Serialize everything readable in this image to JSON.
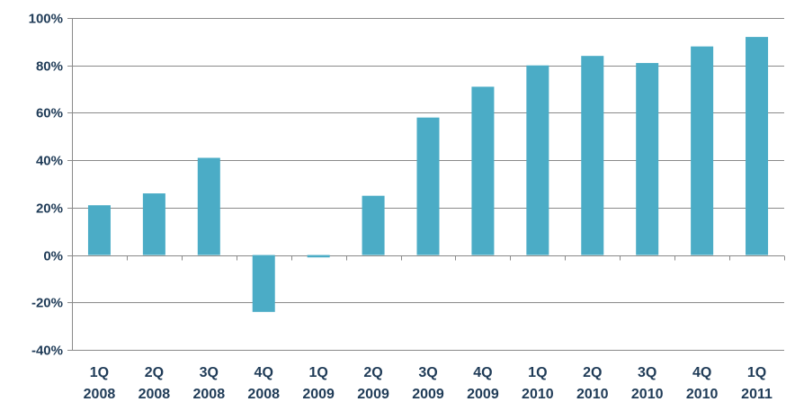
{
  "chart_data": {
    "type": "bar",
    "title": "",
    "xlabel": "",
    "ylabel": "",
    "ylim": [
      -40,
      100
    ],
    "y_ticks": [
      100,
      80,
      60,
      40,
      20,
      0,
      -20,
      -40
    ],
    "y_tick_labels": [
      "100%",
      "80%",
      "60%",
      "40%",
      "20%",
      "0%",
      "-20%",
      "-40%"
    ],
    "grid": true,
    "legend": "none",
    "categories": [
      [
        "1Q",
        "2008"
      ],
      [
        "2Q",
        "2008"
      ],
      [
        "3Q",
        "2008"
      ],
      [
        "4Q",
        "2008"
      ],
      [
        "1Q",
        "2009"
      ],
      [
        "2Q",
        "2009"
      ],
      [
        "3Q",
        "2009"
      ],
      [
        "4Q",
        "2009"
      ],
      [
        "1Q",
        "2010"
      ],
      [
        "2Q",
        "2010"
      ],
      [
        "3Q",
        "2010"
      ],
      [
        "4Q",
        "2010"
      ],
      [
        "1Q",
        "2011"
      ]
    ],
    "values": [
      21,
      26,
      41,
      -24,
      -1,
      25,
      58,
      71,
      80,
      84,
      81,
      88,
      92
    ],
    "colors": {
      "bar": "#4bacc6",
      "grid": "#8a8a8a",
      "axis": "#8a8a8a",
      "text": "#1f3b57"
    }
  }
}
